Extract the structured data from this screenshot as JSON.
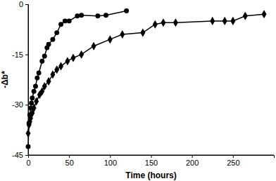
{
  "chart_data": {
    "type": "line",
    "x_label": "Time (hours)",
    "y_label": "-Δb*",
    "xlim": [
      0,
      300
    ],
    "ylim": [
      -45,
      0
    ],
    "xticks": [
      0,
      50,
      100,
      150,
      200,
      250
    ],
    "yticks": [
      0,
      -15,
      -30,
      -45
    ],
    "grid": false,
    "series": [
      {
        "color": "#000000",
        "marker": "circle",
        "line_style": "solid",
        "x": [
          0,
          1,
          2,
          3,
          4,
          5,
          7,
          9,
          11,
          13,
          17,
          20,
          23,
          25,
          30,
          35,
          40,
          45,
          50,
          60,
          65,
          85,
          95,
          120
        ],
        "values": [
          -42.5,
          -35.5,
          -33,
          -31,
          -29.5,
          -28,
          -26,
          -24.5,
          -22,
          -20.5,
          -17,
          -15.5,
          -13,
          -12,
          -10.5,
          -8.5,
          -6,
          -5,
          -5,
          -3.5,
          -3.3,
          -3.5,
          -3.3,
          -2
        ]
      },
      {
        "color": "#000000",
        "marker": "diamond",
        "line_style": "solid",
        "x": [
          0,
          1,
          2,
          3,
          5,
          7,
          10,
          14,
          17,
          20,
          25,
          30,
          35,
          40,
          48,
          55,
          65,
          80,
          100,
          115,
          140,
          155,
          165,
          180,
          225,
          240,
          250,
          265,
          288
        ],
        "values": [
          -38.5,
          -36,
          -35,
          -34,
          -32.5,
          -31,
          -29,
          -27,
          -26,
          -24.5,
          -23,
          -21,
          -19.5,
          -18.5,
          -17,
          -16,
          -15,
          -12.5,
          -10.5,
          -9,
          -8.5,
          -6,
          -5.5,
          -5.5,
          -5,
          -5,
          -5,
          -3.5,
          -3
        ]
      }
    ]
  }
}
